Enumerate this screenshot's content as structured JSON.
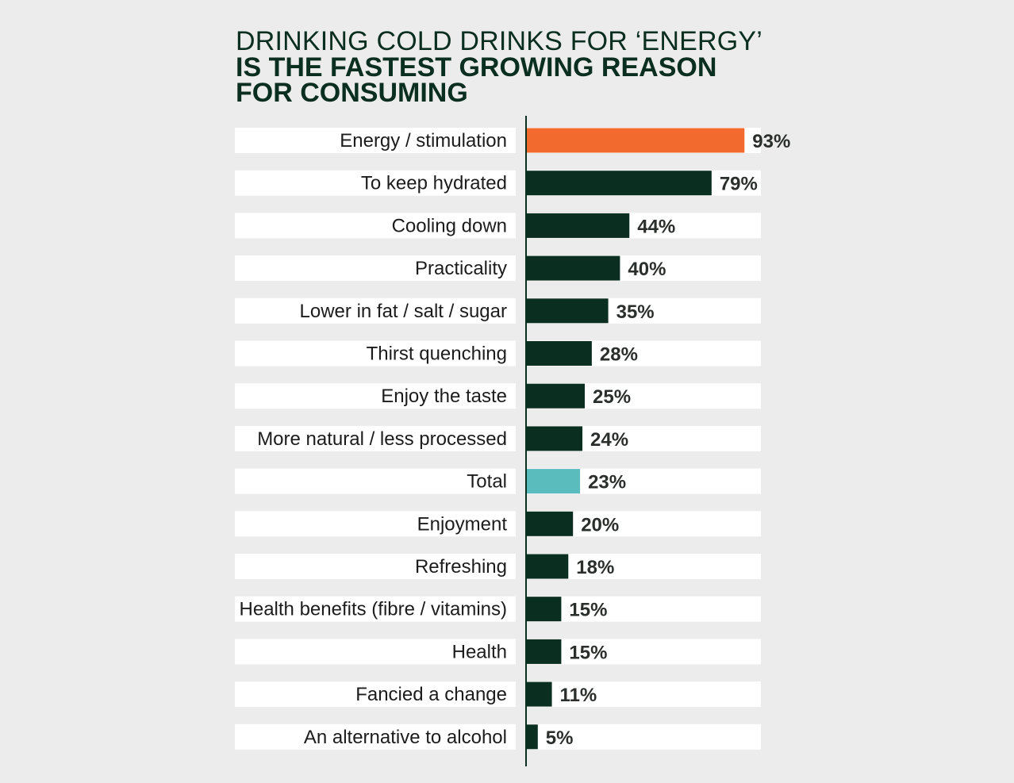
{
  "title_line1": "DRINKING COLD DRINKS FOR ‘ENERGY’",
  "title_line2": "IS THE FASTEST GROWING REASON",
  "title_line3": "FOR CONSUMING",
  "colors": {
    "highlight": "#f26a2e",
    "default": "#0a2e1f",
    "total": "#5bbcbd",
    "background": "#ececec",
    "row_background": "#ffffff",
    "axis": "#0a2e1f"
  },
  "chart_data": {
    "type": "bar",
    "orientation": "horizontal",
    "title": "DRINKING COLD DRINKS FOR ‘ENERGY’ IS THE FASTEST GROWING REASON FOR CONSUMING",
    "xlabel": "",
    "ylabel": "",
    "xlim": [
      0,
      100
    ],
    "grid": false,
    "categories": [
      "Energy / stimulation",
      "To keep hydrated",
      "Cooling down",
      "Practicality",
      "Lower in fat / salt / sugar",
      "Thirst quenching",
      "Enjoy the taste",
      "More natural / less processed",
      "Total",
      "Enjoyment",
      "Refreshing",
      "Health benefits (fibre / vitamins)",
      "Health",
      "Fancied a change",
      "An alternative to alcohol"
    ],
    "values": [
      93,
      79,
      44,
      40,
      35,
      28,
      25,
      24,
      23,
      20,
      18,
      15,
      15,
      11,
      5
    ],
    "value_labels": [
      "93%",
      "79%",
      "44%",
      "40%",
      "35%",
      "28%",
      "25%",
      "24%",
      "23%",
      "20%",
      "18%",
      "15%",
      "15%",
      "11%",
      "5%"
    ],
    "bar_colors": [
      "highlight",
      "default",
      "default",
      "default",
      "default",
      "default",
      "default",
      "default",
      "total",
      "default",
      "default",
      "default",
      "default",
      "default",
      "default"
    ]
  }
}
